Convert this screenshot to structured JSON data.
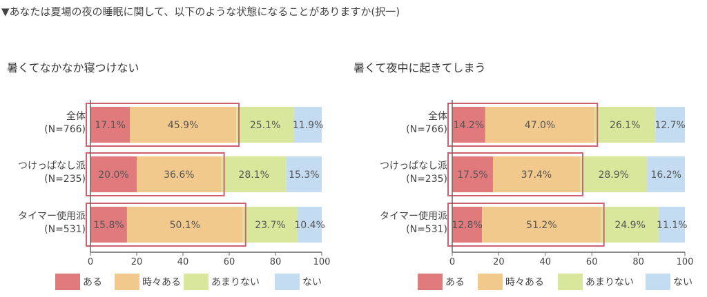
{
  "question": "▼あなたは夏場の夜の睡眠に関して、以下のような状態になることがありますか(択一)",
  "chart_data": [
    {
      "type": "bar",
      "orientation": "horizontal",
      "stacked": "100%",
      "title": "暑くてなかなか寝つけない",
      "categories": [
        "全体\n(N=766)",
        "つけっぱなし派\n(N=235)",
        "タイマー使用派\n(N=531)"
      ],
      "series": [
        {
          "name": "ある",
          "values": [
            17.1,
            20.0,
            15.8
          ],
          "color": "#e07a7d"
        },
        {
          "name": "時々ある",
          "values": [
            45.9,
            36.6,
            50.1
          ],
          "color": "#f2c98c"
        },
        {
          "name": "あまりない",
          "values": [
            25.1,
            28.1,
            23.7
          ],
          "color": "#d8e79c"
        },
        {
          "name": "ない",
          "values": [
            11.9,
            15.3,
            10.4
          ],
          "color": "#c4dcf1"
        }
      ],
      "labels": [
        [
          "17.1%",
          "45.9%",
          "25.1%",
          "11.9%"
        ],
        [
          "20.0%",
          "36.6%",
          "28.1%",
          "15.3%"
        ],
        [
          "15.8%",
          "50.1%",
          "23.7%",
          "10.4%"
        ]
      ],
      "xlim": [
        0,
        100
      ],
      "xticks": [
        "0",
        "20",
        "40",
        "60",
        "80",
        "100"
      ],
      "highlight": "ある + 時々ある",
      "highlight_color": "#cc6070",
      "grid": false,
      "legend_position": "bottom"
    },
    {
      "type": "bar",
      "orientation": "horizontal",
      "stacked": "100%",
      "title": "暑くて夜中に起きてしまう",
      "categories": [
        "全体\n(N=766)",
        "つけっぱなし派\n(N=235)",
        "タイマー使用派\n(N=531)"
      ],
      "series": [
        {
          "name": "ある",
          "values": [
            14.2,
            17.5,
            12.8
          ],
          "color": "#e07a7d"
        },
        {
          "name": "時々ある",
          "values": [
            47.0,
            37.4,
            51.2
          ],
          "color": "#f2c98c"
        },
        {
          "name": "あまりない",
          "values": [
            26.1,
            28.9,
            24.9
          ],
          "color": "#d8e79c"
        },
        {
          "name": "ない",
          "values": [
            12.7,
            16.2,
            11.1
          ],
          "color": "#c4dcf1"
        }
      ],
      "labels": [
        [
          "14.2%",
          "47.0%",
          "26.1%",
          "12.7%"
        ],
        [
          "17.5%",
          "37.4%",
          "28.9%",
          "16.2%"
        ],
        [
          "12.8%",
          "51.2%",
          "24.9%",
          "11.1%"
        ]
      ],
      "xlim": [
        0,
        100
      ],
      "xticks": [
        "0",
        "20",
        "40",
        "60",
        "80",
        "100"
      ],
      "highlight": "ある + 時々ある",
      "highlight_color": "#cc6070",
      "grid": false,
      "legend_position": "bottom"
    }
  ]
}
